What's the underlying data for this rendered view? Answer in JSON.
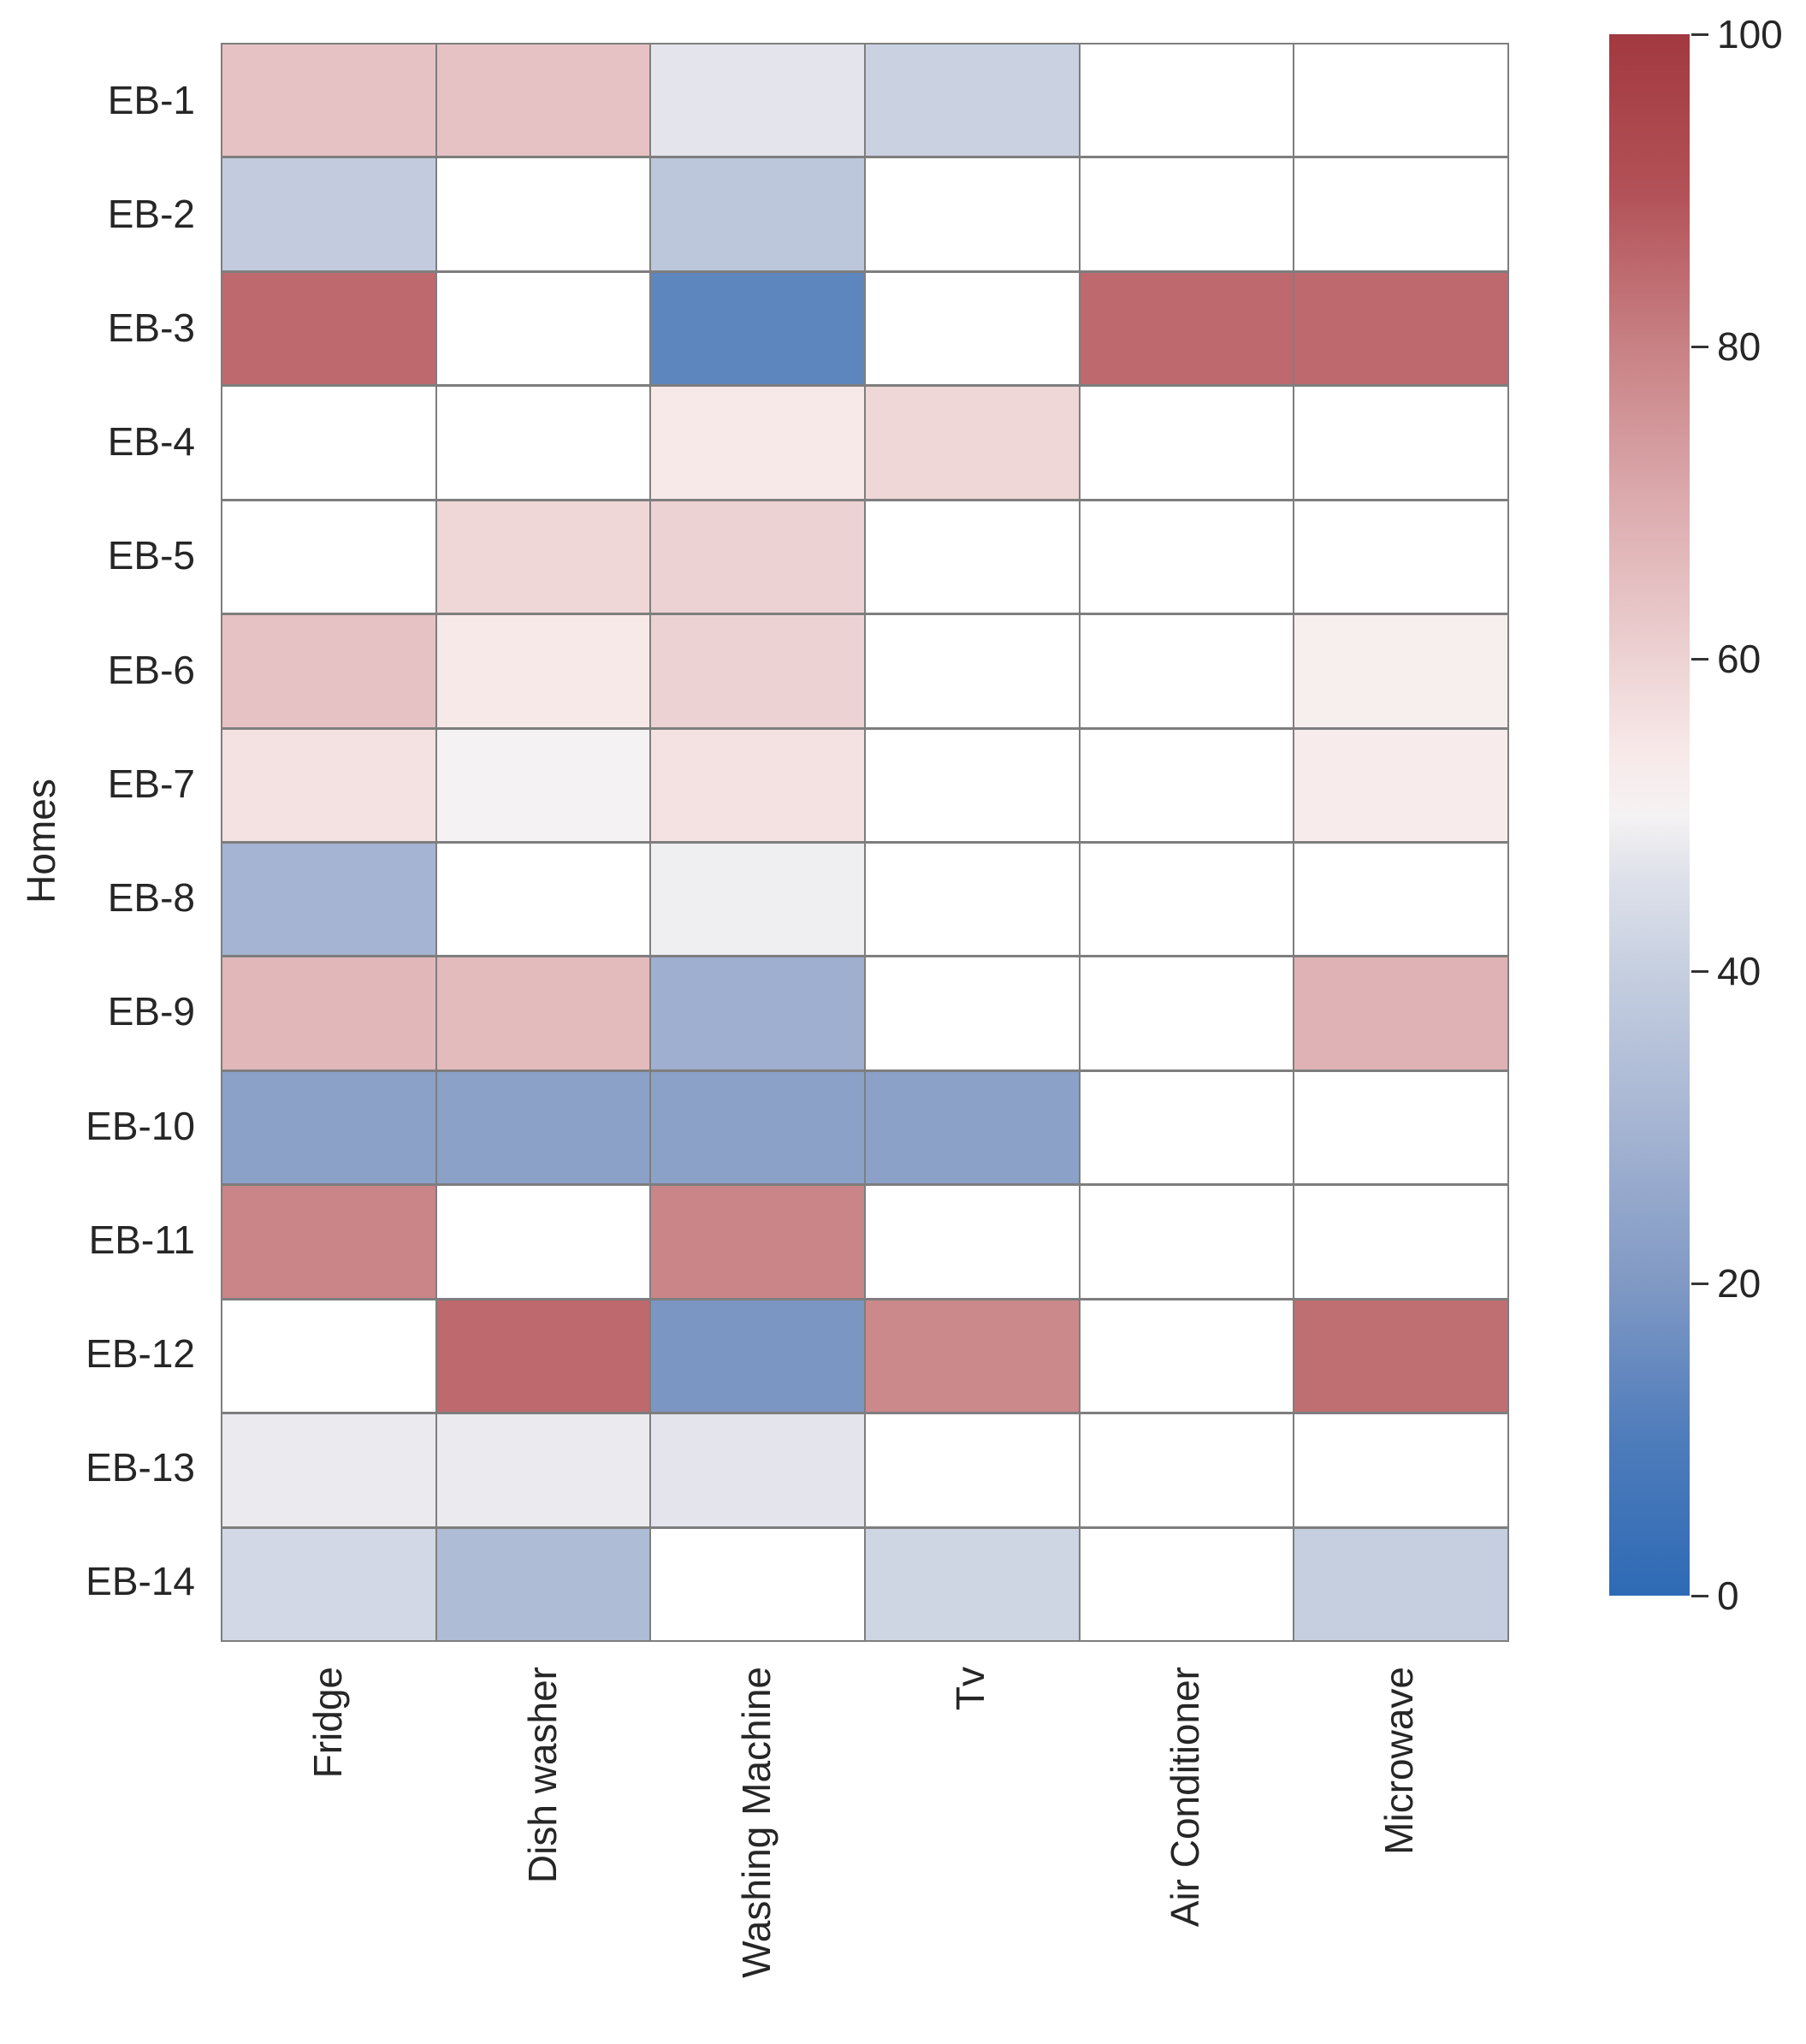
{
  "figure": {
    "background": "#ffffff",
    "gridline_color": "#7e7e7e",
    "text_color": "#262626",
    "missing_color": "#ffffff"
  },
  "chart_data": {
    "type": "heatmap",
    "title": "",
    "xlabel": "",
    "ylabel": "Homes",
    "rows": [
      "EB-1",
      "EB-2",
      "EB-3",
      "EB-4",
      "EB-5",
      "EB-6",
      "EB-7",
      "EB-8",
      "EB-9",
      "EB-10",
      "EB-11",
      "EB-12",
      "EB-13",
      "EB-14"
    ],
    "columns": [
      "Fridge",
      "Dish washer",
      "Washing Machine",
      "Tv",
      "Air Conditioner",
      "Microwave"
    ],
    "values": [
      [
        64,
        64,
        47,
        41,
        null,
        null
      ],
      [
        39,
        null,
        37,
        null,
        null,
        null
      ],
      [
        85,
        null,
        13,
        null,
        85,
        85
      ],
      [
        null,
        null,
        54,
        59,
        null,
        null
      ],
      [
        null,
        59,
        60,
        null,
        null,
        null
      ],
      [
        64,
        54,
        60,
        null,
        null,
        52
      ],
      [
        56,
        50,
        56,
        null,
        null,
        53
      ],
      [
        30,
        null,
        49,
        null,
        null,
        null
      ],
      [
        67,
        66,
        28,
        null,
        null,
        68
      ],
      [
        23,
        23,
        23,
        23,
        null,
        null
      ],
      [
        79,
        null,
        79,
        null,
        null,
        null
      ],
      [
        null,
        85,
        19,
        78,
        null,
        84
      ],
      [
        48,
        48,
        47,
        null,
        null,
        null
      ],
      [
        43,
        33,
        null,
        42,
        null,
        40
      ]
    ],
    "vmin": 0,
    "vmax": 100,
    "legend_position": "right",
    "grid": true,
    "colorbar_ticks": [
      0,
      20,
      40,
      60,
      80,
      100
    ],
    "colormap_stops": [
      {
        "v": 0,
        "c": "#2e6ab5"
      },
      {
        "v": 10,
        "c": "#4e7cbb"
      },
      {
        "v": 20,
        "c": "#8099c4"
      },
      {
        "v": 30,
        "c": "#a5b4d2"
      },
      {
        "v": 40,
        "c": "#c6cfe0"
      },
      {
        "v": 46,
        "c": "#dee1ea"
      },
      {
        "v": 50,
        "c": "#f5f2f3"
      },
      {
        "v": 54,
        "c": "#f8e9e9"
      },
      {
        "v": 60,
        "c": "#edd2d3"
      },
      {
        "v": 70,
        "c": "#dcabae"
      },
      {
        "v": 80,
        "c": "#c88184"
      },
      {
        "v": 90,
        "c": "#b25157"
      },
      {
        "v": 100,
        "c": "#a23940"
      }
    ]
  }
}
